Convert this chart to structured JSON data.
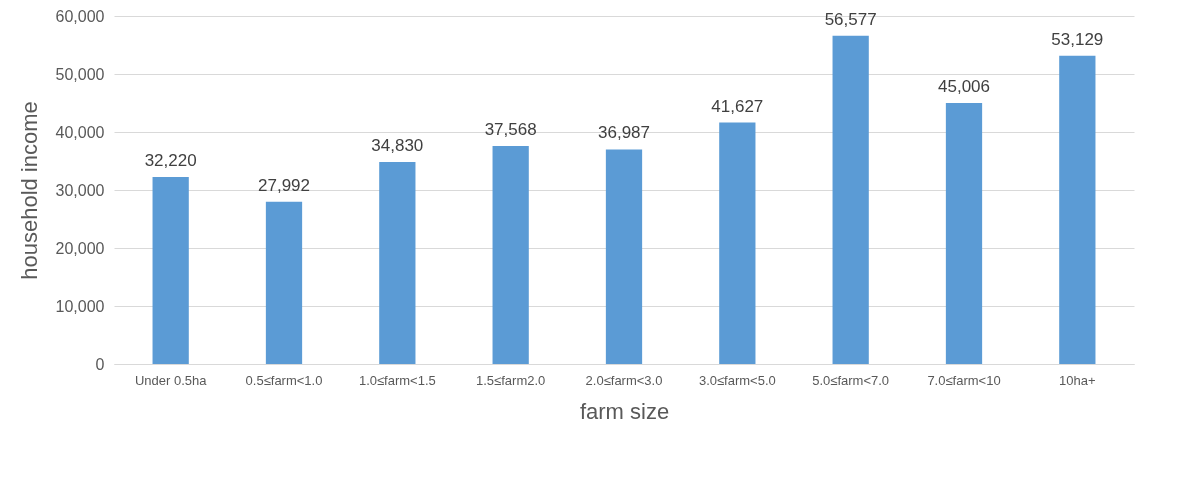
{
  "chart_data": {
    "type": "bar",
    "xlabel": "farm size",
    "ylabel": "household income",
    "categories": [
      "Under 0.5ha",
      "0.5≤farm<1.0",
      "1.0≤farm<1.5",
      "1.5≤farm2.0",
      "2.0≤farm<3.0",
      "3.0≤farm<5.0",
      "5.0≤farm<7.0",
      "7.0≤farm<10",
      "10ha+"
    ],
    "values": [
      32220,
      27992,
      34830,
      37568,
      36987,
      41627,
      56577,
      45006,
      53129
    ],
    "value_labels": [
      "32,220",
      "27,992",
      "34,830",
      "37,568",
      "36,987",
      "41,627",
      "56,577",
      "45,006",
      "53,129"
    ],
    "color": "#5b9bd5",
    "ylim": [
      0,
      60000
    ],
    "yticks": [
      0,
      {
        "value": 10000,
        "label": "10,000"
      },
      {
        "value": 20000,
        "label": "20,000"
      },
      {
        "value": 30000,
        "label": "30,000"
      },
      {
        "value": 40000,
        "label": "40,000"
      },
      {
        "value": 50000,
        "label": "50,000"
      },
      {
        "value": 60000,
        "label": "60,000"
      }
    ],
    "grid": "y"
  }
}
